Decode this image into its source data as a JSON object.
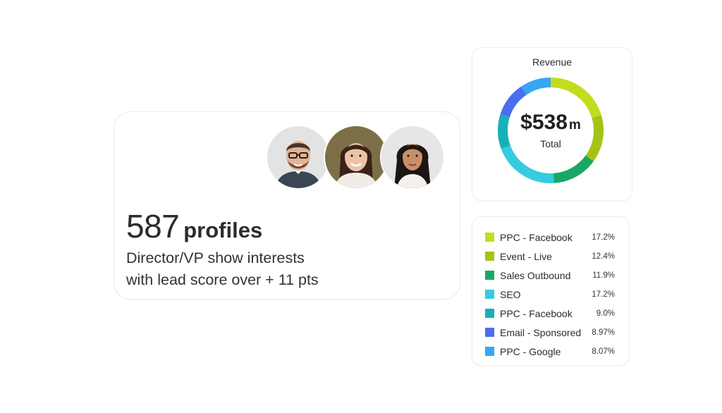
{
  "profiles": {
    "count": "587",
    "unit": "profiles",
    "description_line1": "Director/VP show interests",
    "description_line2": "with lead score over + 11 pts",
    "avatars": [
      "man-with-glasses",
      "woman-brown-hair",
      "woman-dark-hair"
    ]
  },
  "revenue": {
    "title": "Revenue",
    "total_value": "$538",
    "total_suffix": "m",
    "total_label": "Total"
  },
  "legend": [
    {
      "name": "PPC - Facebook",
      "pct": "17.2%",
      "value": 17.2,
      "color": "#c3dc1d"
    },
    {
      "name": "Event - Live",
      "pct": "12.4%",
      "value": 12.4,
      "color": "#a4c414"
    },
    {
      "name": "Sales Outbound",
      "pct": "11.9%",
      "value": 11.9,
      "color": "#1aa765"
    },
    {
      "name": "SEO",
      "pct": "17.2%",
      "value": 17.2,
      "color": "#36cbe0"
    },
    {
      "name": "PPC - Facebook",
      "pct": "9.0%",
      "value": 9.0,
      "color": "#17b0b8"
    },
    {
      "name": "Email - Sponsored",
      "pct": "8.97%",
      "value": 8.97,
      "color": "#4a6ef0"
    },
    {
      "name": "PPC - Google",
      "pct": "8.07%",
      "value": 8.07,
      "color": "#37a6f3"
    }
  ]
}
